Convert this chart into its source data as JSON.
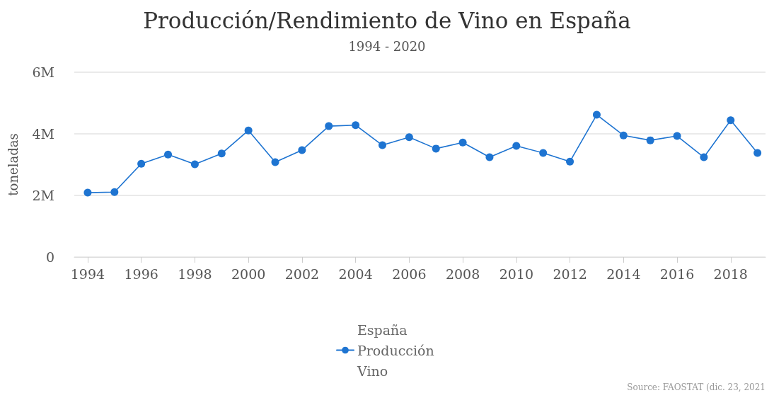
{
  "chart_data": {
    "type": "line",
    "title": "Producción/Rendimiento de Vino en España",
    "subtitle": "1994 - 2020",
    "ylabel": "toneladas",
    "x": [
      1994,
      1995,
      1996,
      1997,
      1998,
      1999,
      2000,
      2001,
      2002,
      2003,
      2004,
      2005,
      2006,
      2007,
      2008,
      2009,
      2010,
      2011,
      2012,
      2013,
      2014,
      2015,
      2016,
      2017,
      2018,
      2019
    ],
    "series": [
      {
        "name": "España Producción Vino",
        "color": "#1e74d1",
        "values": [
          2090000,
          2110000,
          3030000,
          3330000,
          3010000,
          3360000,
          4110000,
          3080000,
          3470000,
          4250000,
          4280000,
          3630000,
          3890000,
          3520000,
          3720000,
          3240000,
          3610000,
          3380000,
          3100000,
          4620000,
          3950000,
          3790000,
          3930000,
          3240000,
          4440000,
          3380000
        ]
      }
    ],
    "xlim": [
      1993.5,
      2019.3
    ],
    "xticks": [
      1994,
      1996,
      1998,
      2000,
      2002,
      2004,
      2006,
      2008,
      2010,
      2012,
      2014,
      2016,
      2018
    ],
    "ylim": [
      0,
      6000000
    ],
    "yticks": [
      0,
      {
        "value": 2000000,
        "label": "2M"
      },
      {
        "value": 4000000,
        "label": "4M"
      },
      {
        "value": 6000000,
        "label": "6M"
      }
    ],
    "grid": "y",
    "legend": "bottom",
    "marker": "circle",
    "line_style": "solid",
    "annotations": [
      "Source: FAOSTAT (dic. 23, 2021"
    ]
  }
}
